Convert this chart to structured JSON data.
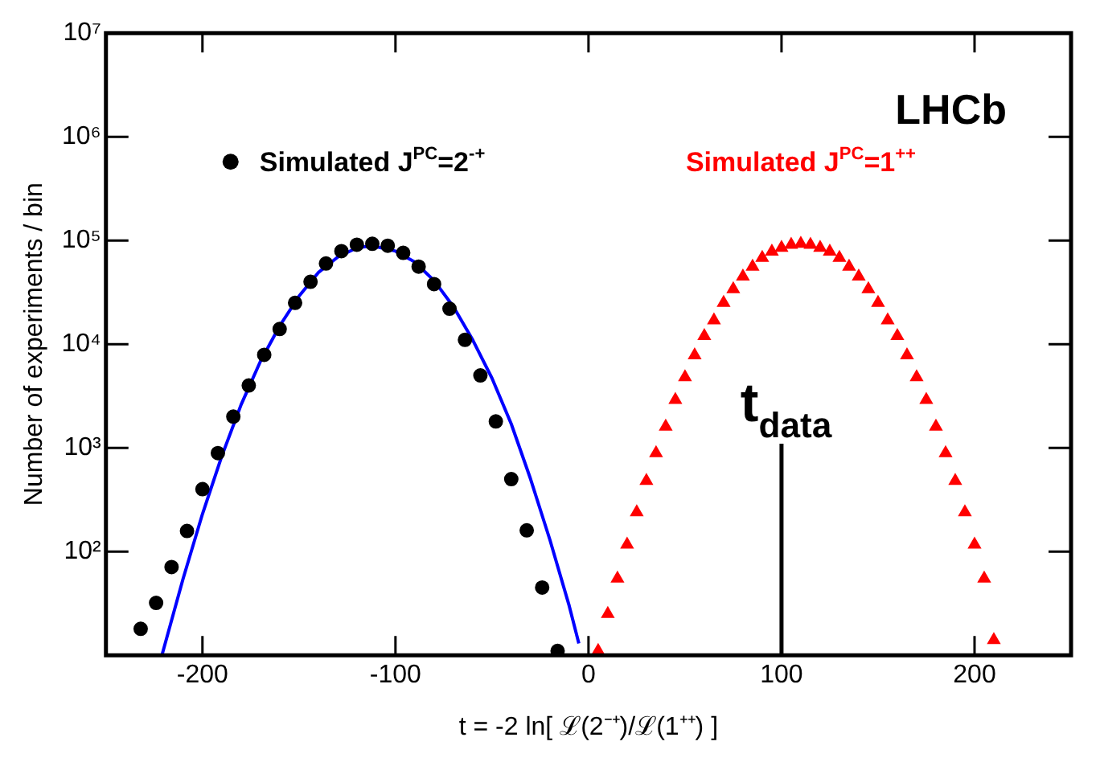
{
  "chart_data": {
    "type": "scatter",
    "xlabel": "t = -2 ln[ ℒ(2⁻⁺)/ℒ(1⁺⁺) ]",
    "ylabel": "Number of experiments / bin",
    "annotations": [
      "LHCb"
    ],
    "series": [
      {
        "name": "Simulated J$^{PC}$=2$^{-+}$",
        "marker": "circle",
        "color": "#000000",
        "x": [
          -232,
          -224,
          -216,
          -208,
          -200,
          -192,
          -184,
          -176,
          -168,
          -160,
          -152,
          -144,
          -136,
          -128,
          -120,
          -112,
          -104,
          -96,
          -88,
          -80,
          -72,
          -64,
          -56,
          -48,
          -40,
          -32,
          -24,
          -16
        ],
        "values": [
          18,
          32,
          71,
          158,
          400,
          890,
          2000,
          4000,
          7900,
          14000,
          25000,
          40000,
          60000,
          79000,
          91000,
          93000,
          89000,
          76000,
          56000,
          38000,
          22000,
          11000,
          5000,
          1800,
          500,
          160,
          45,
          11
        ]
      },
      {
        "type": "line",
        "marker": "none",
        "line_style": "solid",
        "color": "#0000ff",
        "x": [
          -221,
          -210,
          -200,
          -190,
          -180,
          -170,
          -160,
          -150,
          -140,
          -130,
          -120,
          -112,
          -100,
          -90,
          -80,
          -70,
          -60,
          -50,
          -40,
          -30,
          -20,
          -10,
          -5
        ],
        "values": [
          10,
          55,
          230,
          830,
          2600,
          6800,
          15000,
          29000,
          49000,
          69000,
          85000,
          89000,
          79000,
          62000,
          41000,
          23000,
          11000,
          4700,
          1700,
          500,
          130,
          30,
          13
        ]
      },
      {
        "name": "Simulated J$^{PC}$=1$^{++}$",
        "marker": "triangle",
        "color": "#ff0000",
        "x": [
          5,
          10,
          15,
          20,
          25,
          30,
          35,
          40,
          45,
          50,
          55,
          60,
          65,
          70,
          75,
          80,
          85,
          90,
          95,
          100,
          105,
          110,
          115,
          120,
          125,
          130,
          135,
          140,
          145,
          150,
          155,
          160,
          165,
          170,
          175,
          180,
          185,
          190,
          195,
          200,
          205,
          210
        ],
        "values": [
          11,
          25,
          55,
          117,
          240,
          480,
          890,
          1600,
          2900,
          4800,
          7800,
          12000,
          17000,
          25000,
          34000,
          45000,
          56000,
          68000,
          78000,
          85000,
          91000,
          93000,
          91000,
          85000,
          78000,
          68000,
          56000,
          45000,
          34000,
          25000,
          17000,
          12000,
          7800,
          4800,
          2900,
          1600,
          890,
          480,
          240,
          117,
          55,
          14
        ]
      }
    ],
    "ref_lines": [
      {
        "axis": "x",
        "value": 100,
        "label": "t$_{data}$",
        "color": "#000000"
      }
    ],
    "log": "y",
    "xlim": [
      -250,
      250
    ],
    "xticks": [
      -200,
      -100,
      0,
      100,
      200
    ],
    "ylim": [
      10,
      10000000
    ],
    "yticks": [
      {
        "value": 100,
        "label": "10²"
      },
      {
        "value": 1000,
        "label": "10³"
      },
      {
        "value": 10000,
        "label": "10⁴"
      },
      {
        "value": 100000,
        "label": "10⁵"
      },
      {
        "value": 1000000,
        "label": "10⁶"
      },
      {
        "value": 10000000,
        "label": "10⁷"
      }
    ],
    "grid": false,
    "legend": "top"
  }
}
